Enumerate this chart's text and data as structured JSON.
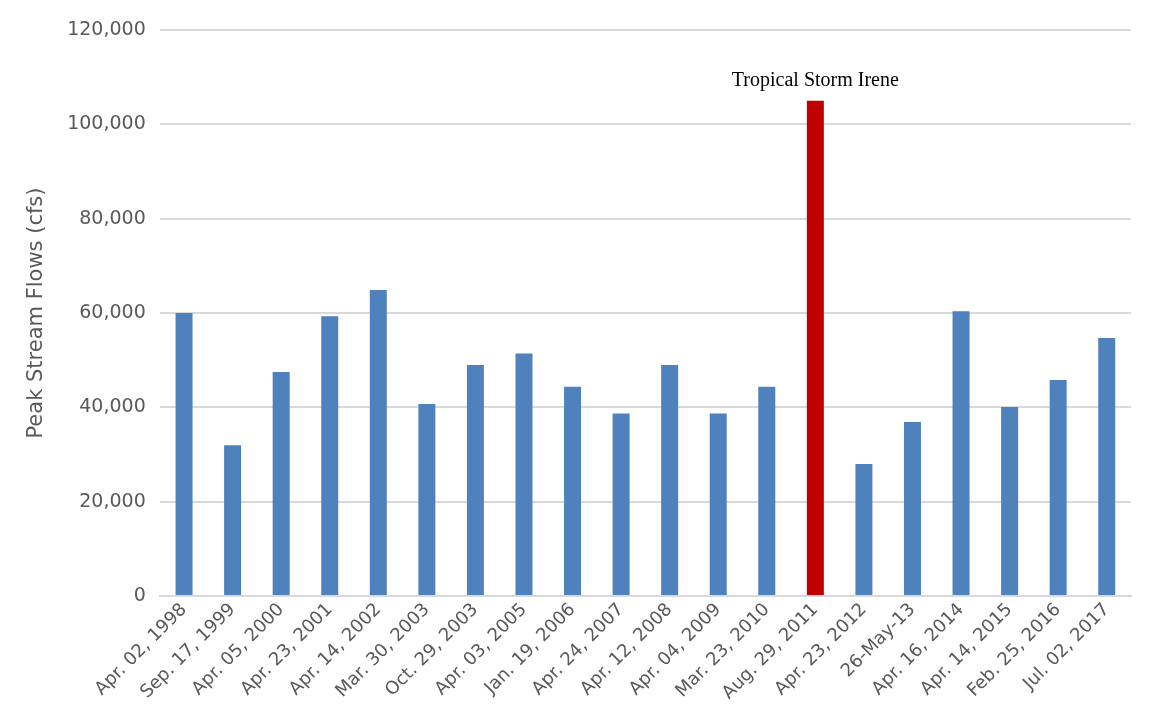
{
  "chart_data": {
    "type": "bar",
    "ylabel": "Peak Stream Flows (cfs)",
    "categories": [
      "Apr. 02, 1998",
      "Sep. 17, 1999",
      "Apr. 05, 2000",
      "Apr. 23, 2001",
      "Apr. 14, 2002",
      "Mar. 30, 2003",
      "Oct. 29, 2003",
      "Apr. 03, 2005",
      "Jan. 19, 2006",
      "Apr. 24, 2007",
      "Apr. 12, 2008",
      "Apr. 04, 2009",
      "Mar. 23, 2010",
      "Aug. 29, 2011",
      "Apr. 23, 2012",
      "26-May-13",
      "Apr. 16, 2014",
      "Apr. 14, 2015",
      "Feb. 25, 2016",
      "Jul. 02, 2017"
    ],
    "values": [
      60000,
      32000,
      47500,
      59300,
      64900,
      40700,
      49000,
      51400,
      44400,
      38700,
      49000,
      38700,
      44400,
      105000,
      28000,
      36900,
      60400,
      40100,
      45800,
      54700
    ],
    "colors": [
      "#4f81bd",
      "#4f81bd",
      "#4f81bd",
      "#4f81bd",
      "#4f81bd",
      "#4f81bd",
      "#4f81bd",
      "#4f81bd",
      "#4f81bd",
      "#4f81bd",
      "#4f81bd",
      "#4f81bd",
      "#4f81bd",
      "#c00000",
      "#4f81bd",
      "#4f81bd",
      "#4f81bd",
      "#4f81bd",
      "#4f81bd",
      "#4f81bd"
    ],
    "ylim": [
      0,
      120000
    ],
    "yticks": [
      0,
      {
        "value": 20000,
        "label": "20,000"
      },
      {
        "value": 40000,
        "label": "40,000"
      },
      {
        "value": 60000,
        "label": "60,000"
      },
      {
        "value": 80000,
        "label": "80,000"
      },
      {
        "value": 100000,
        "label": "100,000"
      },
      {
        "value": 120000,
        "label": "120,000"
      }
    ],
    "grid": "y",
    "legend": false,
    "annotations": [
      {
        "text": "Tropical Storm Irene",
        "x": "Aug. 29, 2011",
        "y": 105000
      }
    ]
  }
}
